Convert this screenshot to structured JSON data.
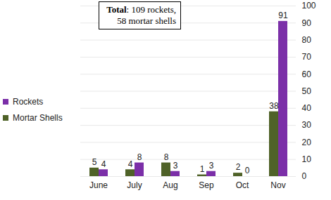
{
  "chart_data": {
    "type": "bar",
    "annotation": "Total: 109 rockets, 58 mortar shells",
    "categories": [
      "June",
      "July",
      "Aug",
      "Sep",
      "Oct",
      "Nov"
    ],
    "series": [
      {
        "name": "Mortar Shells",
        "color": "#4f6228",
        "values": [
          5,
          4,
          8,
          1,
          2,
          38
        ]
      },
      {
        "name": "Rockets",
        "color": "#7b2fa8",
        "values": [
          4,
          8,
          3,
          3,
          0,
          91
        ]
      }
    ],
    "ylim": [
      0,
      100
    ],
    "yticks": [
      0,
      10,
      20,
      30,
      40,
      50,
      60,
      70,
      80,
      90,
      100
    ],
    "grid": true,
    "legend": "left",
    "data_labels": true
  }
}
